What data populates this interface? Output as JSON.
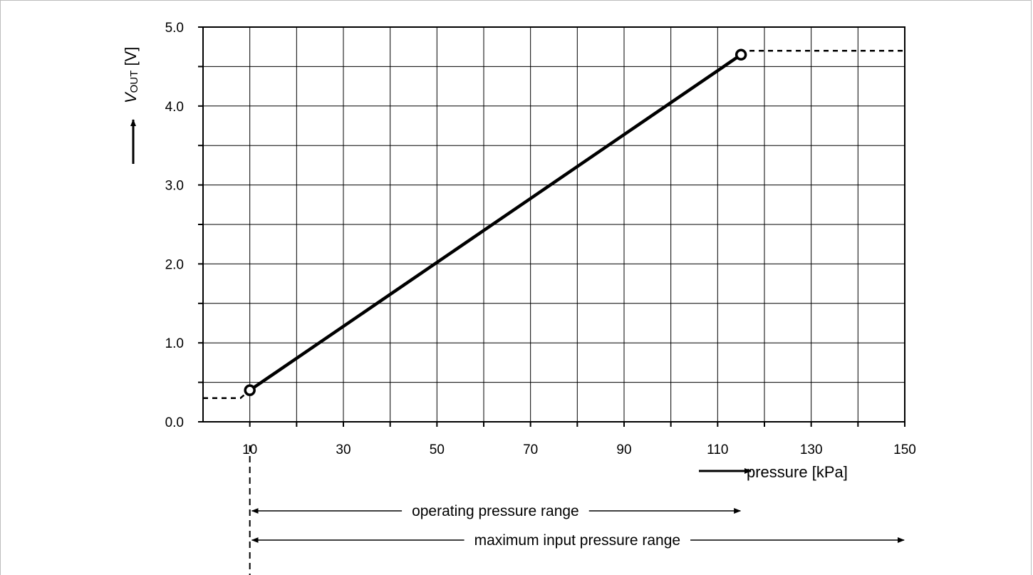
{
  "chart_data": {
    "type": "line",
    "title": "",
    "xlabel": "pressure [kPa]",
    "ylabel_main": "V",
    "ylabel_sub": "OUT",
    "ylabel_unit": " [V]",
    "xlim": [
      0,
      150
    ],
    "ylim": [
      0,
      5
    ],
    "x_ticks": [
      10,
      30,
      50,
      70,
      90,
      110,
      130,
      150
    ],
    "y_ticks": [
      "0.0",
      "1.0",
      "2.0",
      "3.0",
      "4.0",
      "5.0"
    ],
    "grid": true,
    "series": [
      {
        "points": [
          [
            10,
            0.4
          ],
          [
            115,
            4.65
          ]
        ],
        "style": "solid"
      }
    ],
    "extensions": [
      {
        "points": [
          [
            0,
            0.3
          ],
          [
            8,
            0.3
          ],
          [
            10,
            0.4
          ]
        ],
        "style": "dashed"
      },
      {
        "points": [
          [
            115,
            4.65
          ],
          [
            117,
            4.7
          ],
          [
            150,
            4.7
          ]
        ],
        "style": "dashed"
      }
    ],
    "markers": [
      [
        10,
        0.4
      ],
      [
        115,
        4.65
      ]
    ],
    "ranges": [
      {
        "label": "operating pressure range",
        "from": 10,
        "to": 115
      },
      {
        "label": "maximum input pressure range",
        "from": 10,
        "to": 150
      }
    ]
  }
}
